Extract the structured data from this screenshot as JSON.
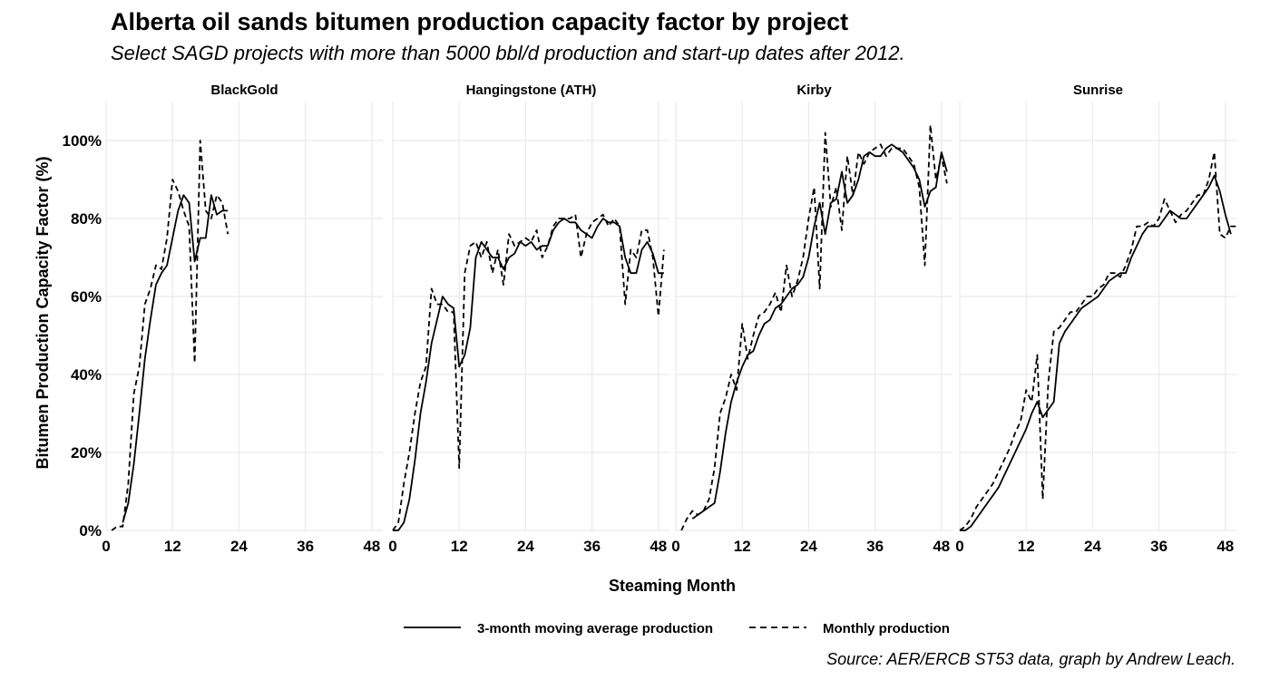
{
  "chart_data": {
    "type": "line",
    "title": "Alberta oil sands bitumen production capacity factor by project",
    "subtitle": "Select SAGD projects with more than 5000 bbl/d production and start-up dates after 2012.",
    "xlabel": "Steaming Month",
    "ylabel": "Bitumen Production Capacity Factor (%)",
    "caption": "Source: AER/ERCB ST53 data, graph by Andrew Leach.",
    "x_ticks": [
      "0",
      "12",
      "24",
      "36",
      "48"
    ],
    "y_ticks": [
      "0%",
      "20%",
      "40%",
      "60%",
      "80%",
      "100%"
    ],
    "xlim": [
      0,
      50
    ],
    "ylim": [
      0,
      1.1
    ],
    "grid": true,
    "legend_position": "bottom",
    "legend": [
      {
        "key": "avg",
        "label": "3-month moving average production",
        "style": "solid"
      },
      {
        "key": "monthly",
        "label": "Monthly production",
        "style": "dashed"
      }
    ],
    "panels": [
      {
        "name": "BlackGold",
        "series": [
          {
            "key": "avg",
            "x": [
              3,
              4,
              5,
              6,
              7,
              8,
              9,
              10,
              11,
              12,
              13,
              14,
              15,
              16,
              17,
              18,
              19,
              20,
              21,
              22
            ],
            "y": [
              0.02,
              0.07,
              0.17,
              0.3,
              0.44,
              0.54,
              0.63,
              0.66,
              0.68,
              0.75,
              0.82,
              0.86,
              0.84,
              0.69,
              0.75,
              0.75,
              0.86,
              0.81,
              0.82,
              0.82
            ]
          },
          {
            "key": "monthly",
            "x": [
              1,
              2,
              3,
              4,
              5,
              6,
              7,
              8,
              9,
              10,
              11,
              12,
              13,
              14,
              15,
              16,
              17,
              18,
              19,
              20,
              21,
              22
            ],
            "y": [
              0.0,
              0.01,
              0.01,
              0.12,
              0.35,
              0.42,
              0.58,
              0.62,
              0.68,
              0.67,
              0.75,
              0.9,
              0.87,
              0.82,
              0.78,
              0.43,
              1.0,
              0.82,
              0.8,
              0.86,
              0.84,
              0.76
            ]
          }
        ]
      },
      {
        "name": "Hangingstone (ATH)",
        "series": [
          {
            "key": "avg",
            "x": [
              0,
              1,
              2,
              3,
              4,
              5,
              6,
              7,
              8,
              9,
              10,
              11,
              12,
              13,
              14,
              15,
              16,
              17,
              18,
              19,
              20,
              21,
              22,
              23,
              24,
              25,
              26,
              27,
              28,
              29,
              30,
              31,
              32,
              33,
              34,
              35,
              36,
              37,
              38,
              39,
              40,
              41,
              42,
              43,
              44,
              45,
              46,
              47,
              48,
              49
            ],
            "y": [
              0.0,
              0.0,
              0.02,
              0.08,
              0.18,
              0.3,
              0.38,
              0.48,
              0.54,
              0.6,
              0.58,
              0.57,
              0.42,
              0.45,
              0.52,
              0.7,
              0.74,
              0.72,
              0.7,
              0.7,
              0.67,
              0.7,
              0.71,
              0.74,
              0.73,
              0.74,
              0.72,
              0.73,
              0.73,
              0.77,
              0.79,
              0.8,
              0.79,
              0.79,
              0.77,
              0.76,
              0.75,
              0.78,
              0.8,
              0.79,
              0.79,
              0.78,
              0.7,
              0.66,
              0.66,
              0.72,
              0.74,
              0.71,
              0.66,
              0.66
            ]
          },
          {
            "key": "monthly",
            "x": [
              0,
              1,
              2,
              3,
              4,
              5,
              6,
              7,
              8,
              9,
              10,
              11,
              12,
              13,
              14,
              15,
              16,
              17,
              18,
              19,
              20,
              21,
              22,
              23,
              24,
              25,
              26,
              27,
              28,
              29,
              30,
              31,
              32,
              33,
              34,
              35,
              36,
              37,
              38,
              39,
              40,
              41,
              42,
              43,
              44,
              45,
              46,
              47,
              48,
              49
            ],
            "y": [
              0.0,
              0.02,
              0.12,
              0.2,
              0.3,
              0.38,
              0.42,
              0.62,
              0.58,
              0.58,
              0.56,
              0.56,
              0.16,
              0.66,
              0.73,
              0.74,
              0.7,
              0.74,
              0.66,
              0.72,
              0.63,
              0.76,
              0.73,
              0.74,
              0.75,
              0.74,
              0.77,
              0.7,
              0.73,
              0.78,
              0.8,
              0.8,
              0.8,
              0.81,
              0.7,
              0.76,
              0.79,
              0.8,
              0.81,
              0.78,
              0.8,
              0.78,
              0.58,
              0.72,
              0.7,
              0.77,
              0.77,
              0.7,
              0.55,
              0.72
            ]
          }
        ]
      },
      {
        "name": "Kirby",
        "series": [
          {
            "key": "avg",
            "x": [
              3,
              4,
              5,
              6,
              7,
              8,
              9,
              10,
              11,
              12,
              13,
              14,
              15,
              16,
              17,
              18,
              19,
              20,
              21,
              22,
              23,
              24,
              25,
              26,
              27,
              28,
              29,
              30,
              31,
              32,
              33,
              34,
              35,
              36,
              37,
              38,
              39,
              40,
              41,
              42,
              43,
              44,
              45,
              46,
              47,
              48,
              49
            ],
            "y": [
              0.03,
              0.04,
              0.05,
              0.06,
              0.07,
              0.15,
              0.25,
              0.33,
              0.38,
              0.42,
              0.45,
              0.46,
              0.5,
              0.53,
              0.54,
              0.57,
              0.58,
              0.6,
              0.62,
              0.63,
              0.65,
              0.7,
              0.78,
              0.84,
              0.76,
              0.84,
              0.85,
              0.92,
              0.84,
              0.86,
              0.9,
              0.96,
              0.97,
              0.96,
              0.96,
              0.98,
              0.99,
              0.98,
              0.97,
              0.95,
              0.93,
              0.9,
              0.83,
              0.87,
              0.88,
              0.97,
              0.92
            ]
          },
          {
            "key": "monthly",
            "x": [
              1,
              2,
              3,
              4,
              5,
              6,
              7,
              8,
              9,
              10,
              11,
              12,
              13,
              14,
              15,
              16,
              17,
              18,
              19,
              20,
              21,
              22,
              23,
              24,
              25,
              26,
              27,
              28,
              29,
              30,
              31,
              32,
              33,
              34,
              35,
              36,
              37,
              38,
              39,
              40,
              41,
              42,
              43,
              44,
              45,
              46,
              47,
              48,
              49
            ],
            "y": [
              0.0,
              0.03,
              0.05,
              0.04,
              0.05,
              0.08,
              0.16,
              0.3,
              0.34,
              0.4,
              0.36,
              0.53,
              0.44,
              0.5,
              0.55,
              0.56,
              0.58,
              0.61,
              0.56,
              0.68,
              0.6,
              0.64,
              0.7,
              0.8,
              0.88,
              0.62,
              1.02,
              0.83,
              0.88,
              0.77,
              0.96,
              0.86,
              0.97,
              0.94,
              0.97,
              0.98,
              0.99,
              0.96,
              0.98,
              0.98,
              0.98,
              0.96,
              0.94,
              0.88,
              0.68,
              1.04,
              0.9,
              0.96,
              0.89
            ]
          }
        ]
      },
      {
        "name": "Sunrise",
        "series": [
          {
            "key": "avg",
            "x": [
              0,
              1,
              2,
              3,
              4,
              5,
              6,
              7,
              8,
              9,
              10,
              11,
              12,
              13,
              14,
              15,
              16,
              17,
              18,
              19,
              20,
              21,
              22,
              23,
              24,
              25,
              26,
              27,
              28,
              29,
              30,
              31,
              32,
              33,
              34,
              35,
              36,
              37,
              38,
              39,
              40,
              41,
              42,
              43,
              44,
              45,
              46,
              47,
              48,
              49
            ],
            "y": [
              0.0,
              0.0,
              0.01,
              0.03,
              0.05,
              0.07,
              0.09,
              0.11,
              0.14,
              0.17,
              0.2,
              0.23,
              0.26,
              0.3,
              0.33,
              0.29,
              0.31,
              0.33,
              0.48,
              0.51,
              0.53,
              0.55,
              0.57,
              0.58,
              0.59,
              0.6,
              0.62,
              0.64,
              0.65,
              0.66,
              0.66,
              0.7,
              0.73,
              0.76,
              0.78,
              0.78,
              0.78,
              0.8,
              0.82,
              0.81,
              0.8,
              0.8,
              0.82,
              0.84,
              0.86,
              0.88,
              0.91,
              0.87,
              0.81,
              0.76
            ]
          },
          {
            "key": "monthly",
            "x": [
              0,
              1,
              2,
              3,
              4,
              5,
              6,
              7,
              8,
              9,
              10,
              11,
              12,
              13,
              14,
              15,
              16,
              17,
              18,
              19,
              20,
              21,
              22,
              23,
              24,
              25,
              26,
              27,
              28,
              29,
              30,
              31,
              32,
              33,
              34,
              35,
              36,
              37,
              38,
              39,
              40,
              41,
              42,
              43,
              44,
              45,
              46,
              47,
              48,
              49,
              50
            ],
            "y": [
              0.0,
              0.01,
              0.03,
              0.06,
              0.08,
              0.1,
              0.12,
              0.15,
              0.18,
              0.21,
              0.25,
              0.28,
              0.36,
              0.33,
              0.45,
              0.08,
              0.38,
              0.51,
              0.52,
              0.54,
              0.56,
              0.56,
              0.58,
              0.6,
              0.6,
              0.62,
              0.63,
              0.66,
              0.66,
              0.65,
              0.68,
              0.72,
              0.78,
              0.78,
              0.79,
              0.78,
              0.8,
              0.85,
              0.82,
              0.79,
              0.81,
              0.82,
              0.84,
              0.86,
              0.86,
              0.9,
              0.97,
              0.76,
              0.75,
              0.78,
              0.78
            ]
          }
        ]
      }
    ]
  }
}
